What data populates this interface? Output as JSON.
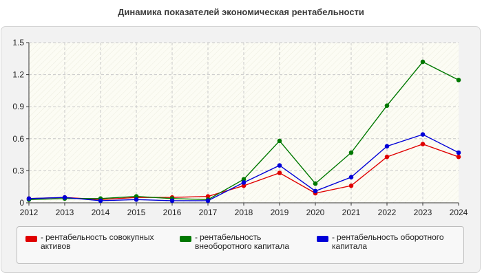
{
  "chart_data": {
    "type": "line",
    "title": "Динамика показателей экономическая рентабельности",
    "x": [
      "2012",
      "2013",
      "2014",
      "2015",
      "2016",
      "2017",
      "2018",
      "2019",
      "2020",
      "2021",
      "2022",
      "2023",
      "2024"
    ],
    "yticks": [
      "0",
      "0.3",
      "0.6",
      "0.9",
      "1.2",
      "1.5"
    ],
    "ylim": [
      0,
      1.5
    ],
    "grid": true,
    "legend_position": "bottom",
    "series": [
      {
        "name": "рентабельность совокупных активов",
        "color": "#e00000",
        "values": [
          0.04,
          0.05,
          0.03,
          0.05,
          0.05,
          0.06,
          0.16,
          0.28,
          0.09,
          0.16,
          0.43,
          0.55,
          0.43
        ]
      },
      {
        "name": "рентабельность внеоборотного капитала",
        "color": "#007800",
        "values": [
          0.03,
          0.04,
          0.04,
          0.06,
          0.04,
          0.03,
          0.22,
          0.58,
          0.18,
          0.47,
          0.91,
          1.32,
          1.15
        ]
      },
      {
        "name": "рентабельность оборотного капитала",
        "color": "#0000d8",
        "values": [
          0.04,
          0.05,
          0.02,
          0.03,
          0.02,
          0.02,
          0.19,
          0.35,
          0.11,
          0.24,
          0.53,
          0.64,
          0.47
        ]
      }
    ]
  },
  "legend": {
    "items": [
      {
        "prefix": "-",
        "label": "рентабельность совокупных активов",
        "color": "#e00000"
      },
      {
        "prefix": "-",
        "label": "рентабельность внеоборотного капитала",
        "color": "#007800"
      },
      {
        "prefix": "-",
        "label": "рентабельность оборотного капитала",
        "color": "#0000d8"
      }
    ]
  }
}
